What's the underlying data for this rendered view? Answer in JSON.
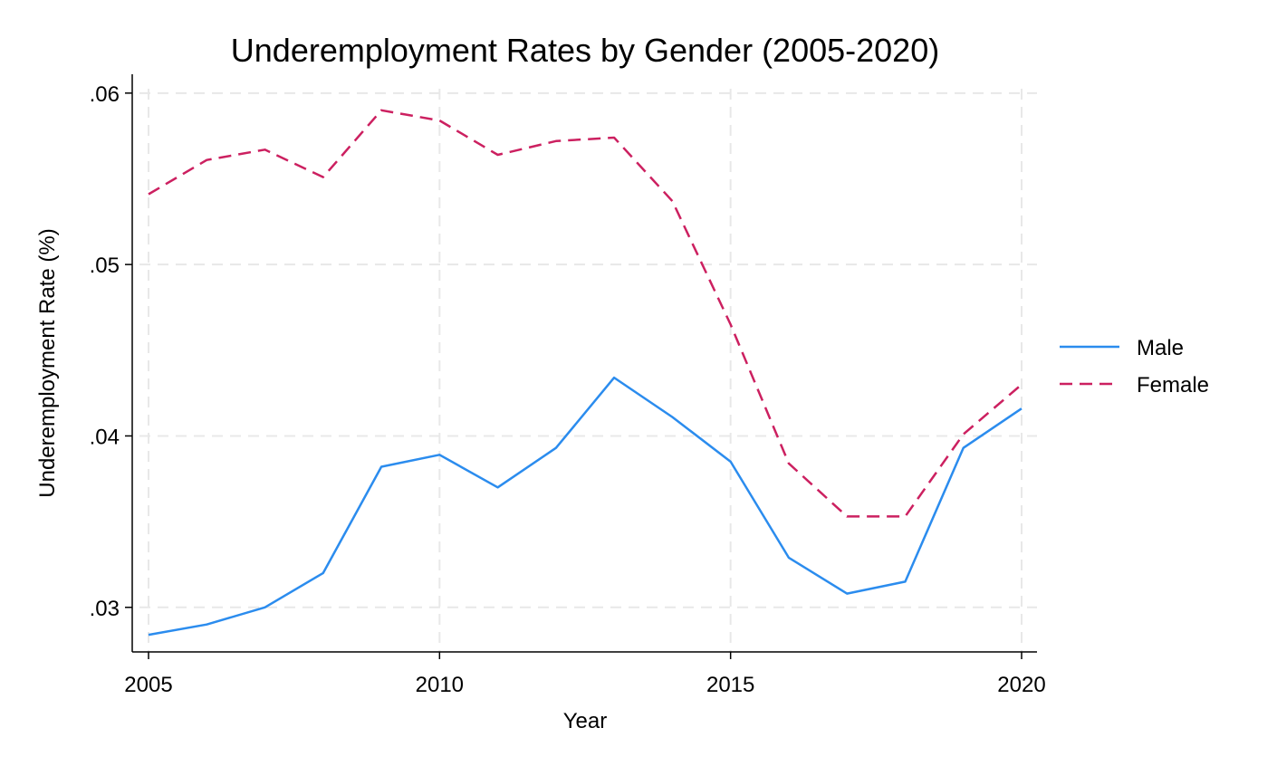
{
  "chart_data": {
    "type": "line",
    "title": "Underemployment Rates by Gender (2005-2020)",
    "xlabel": "Year",
    "ylabel": "Underemployment Rate (%)",
    "x": [
      2005,
      2006,
      2007,
      2008,
      2009,
      2010,
      2011,
      2012,
      2013,
      2014,
      2015,
      2016,
      2017,
      2018,
      2019,
      2020
    ],
    "xlim": [
      2005,
      2020
    ],
    "ylim": [
      0.0274,
      0.0611
    ],
    "xticks": [
      2005,
      2010,
      2015,
      2020
    ],
    "xtick_labels": [
      "2005",
      "2010",
      "2015",
      "2020"
    ],
    "yticks": [
      0.03,
      0.04,
      0.05,
      0.06
    ],
    "ytick_labels": [
      ".03",
      ".04",
      ".05",
      ".06"
    ],
    "grid": true,
    "legend_position": "right",
    "series": [
      {
        "name": "Male",
        "color": "#2b8cee",
        "style": "solid",
        "values": [
          0.0284,
          0.029,
          0.03,
          0.032,
          0.0382,
          0.0389,
          0.037,
          0.0393,
          0.0434,
          0.0411,
          0.0385,
          0.0329,
          0.0308,
          0.0315,
          0.0393,
          0.0416
        ]
      },
      {
        "name": "Female",
        "color": "#cc2060",
        "style": "dashed",
        "values": [
          0.0541,
          0.0561,
          0.0567,
          0.0551,
          0.059,
          0.0584,
          0.0564,
          0.0572,
          0.0574,
          0.0537,
          0.0465,
          0.0384,
          0.0353,
          0.0353,
          0.0401,
          0.043
        ]
      }
    ]
  }
}
